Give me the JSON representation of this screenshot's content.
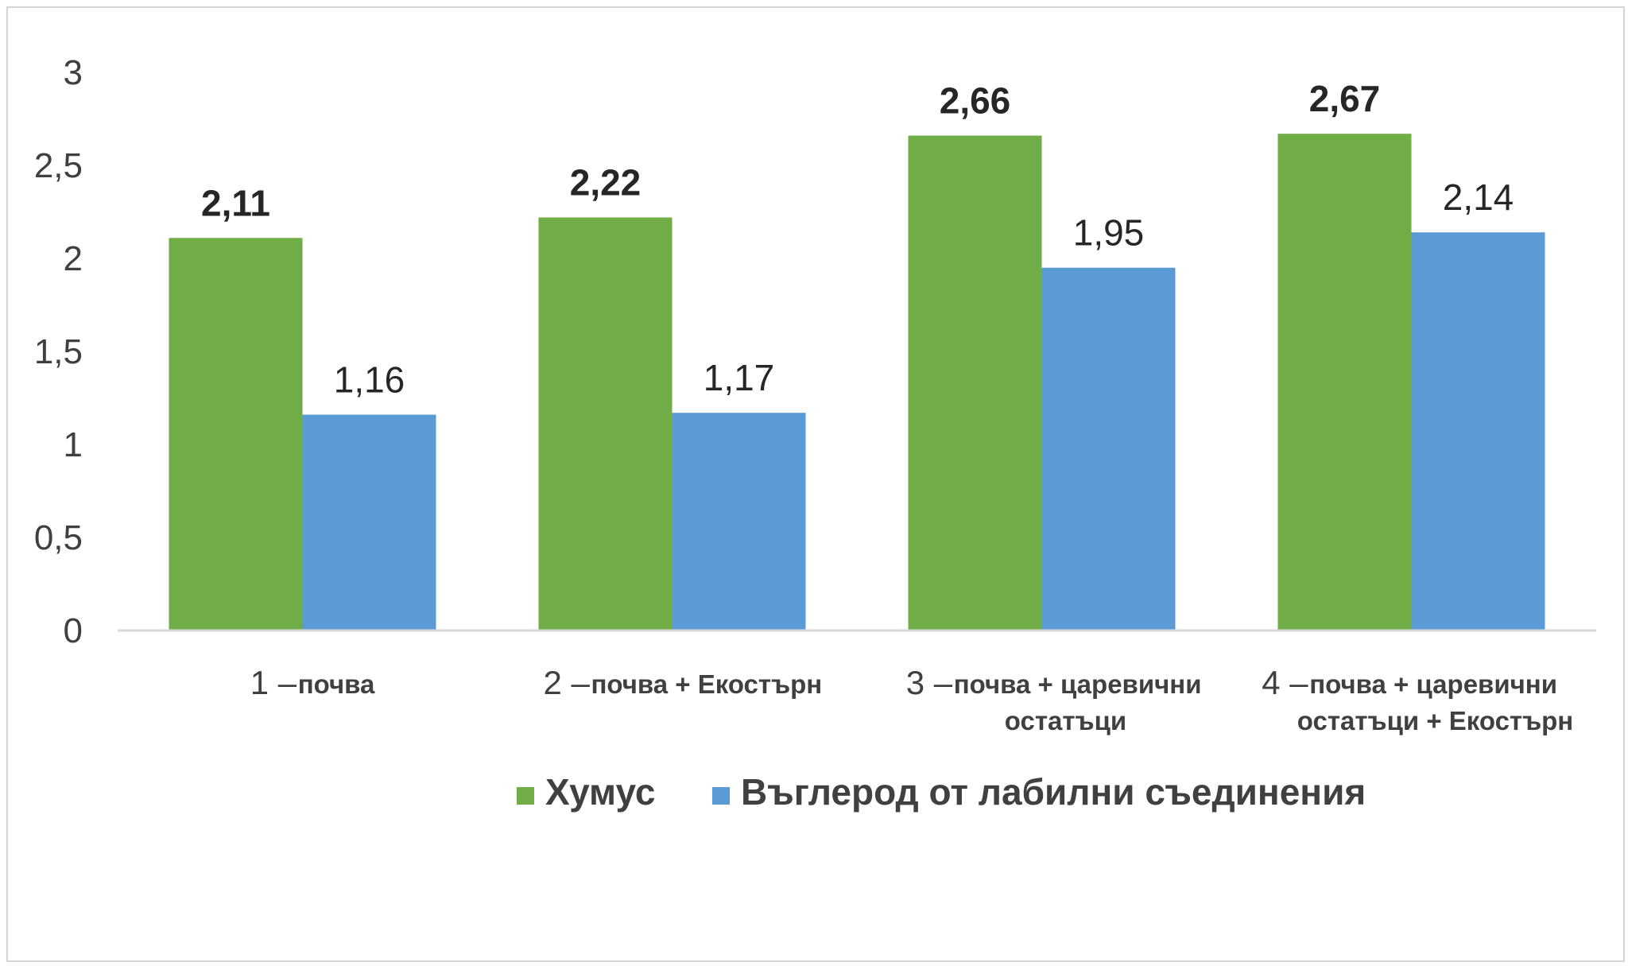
{
  "chart_data": {
    "type": "bar",
    "title": "",
    "xlabel": "",
    "ylabel": "",
    "ylim": [
      0,
      3
    ],
    "yticks": [
      "0",
      "0,5",
      "1",
      "1,5",
      "2",
      "2,5",
      "3"
    ],
    "grid": false,
    "legend_position": "bottom",
    "categories": [
      {
        "num": "1 –",
        "lines": [
          "почва"
        ]
      },
      {
        "num": "2 –",
        "lines": [
          "почва + Екостърн"
        ]
      },
      {
        "num": "3 –",
        "lines": [
          "почва + царевични",
          "остатъци"
        ]
      },
      {
        "num": "4 –",
        "lines": [
          "почва + царевични",
          "остатъци + Екостърн"
        ]
      }
    ],
    "series": [
      {
        "name": "Хумус",
        "color": "#70ad47",
        "values": [
          2.11,
          2.22,
          2.66,
          2.67
        ],
        "labels": [
          "2,11",
          "2,22",
          "2,66",
          "2,67"
        ],
        "label_bold": true
      },
      {
        "name": "Въглерод от лабилни съединения",
        "color": "#5b9bd5",
        "values": [
          1.16,
          1.17,
          1.95,
          2.14
        ],
        "labels": [
          "1,16",
          "1,17",
          "1,95",
          "2,14"
        ],
        "label_bold": false
      }
    ]
  }
}
